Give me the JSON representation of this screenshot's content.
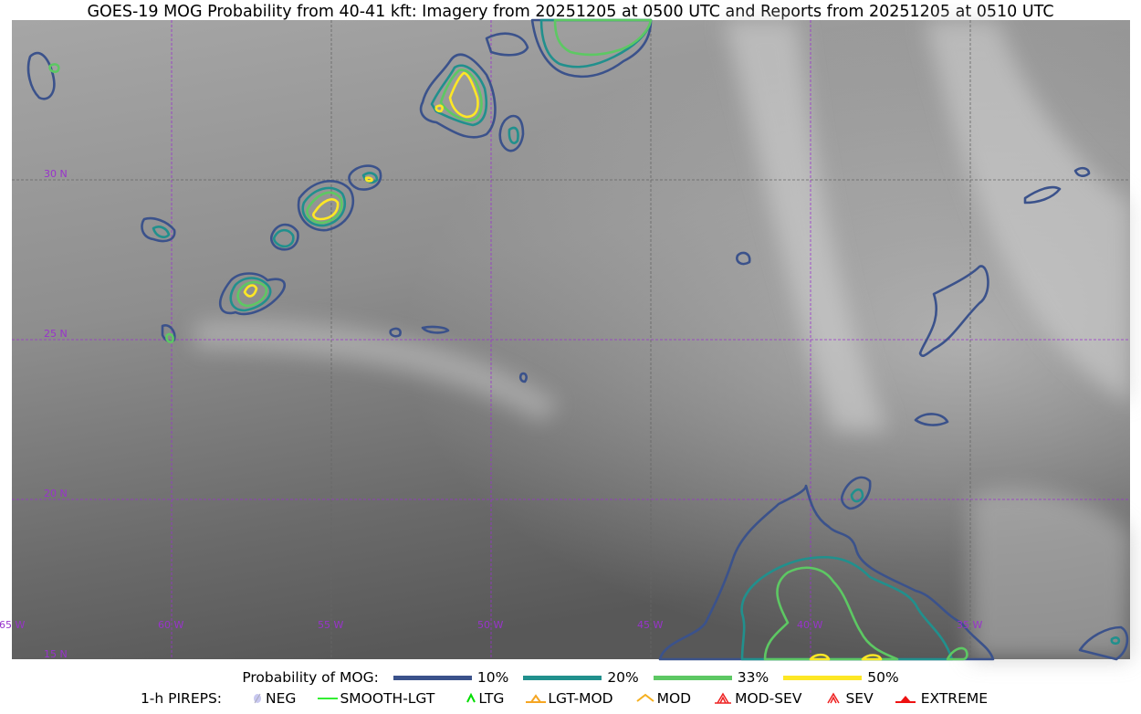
{
  "title": "GOES-19 MOG Probability from 40-41 kft: Imagery from 20251205 at 0500 UTC and Reports from 20251205 at 0510 UTC",
  "chart_data": {
    "type": "contour",
    "background": "satellite water vapor imagery (grayscale)",
    "x_ticks": [
      "65 W",
      "60 W",
      "55 W",
      "50 W",
      "45 W",
      "40 W",
      "35 W"
    ],
    "y_ticks": [
      "30 N",
      "25 N",
      "20 N",
      "15 N"
    ],
    "xlim": [
      "65.4 W",
      "30.4 W"
    ],
    "ylim": [
      "15 N",
      "35 N"
    ],
    "grid": true,
    "grid_color": "#9933cc",
    "contour_levels": [
      {
        "label": "10%",
        "color": "#3b528b"
      },
      {
        "label": "20%",
        "color": "#21908d"
      },
      {
        "label": "33%",
        "color": "#5dc863"
      },
      {
        "label": "50%",
        "color": "#fde725"
      }
    ]
  },
  "legend": {
    "mog_title": "Probability of MOG:",
    "levels": [
      "10%",
      "20%",
      "33%",
      "50%"
    ],
    "pireps_title": "1-h PIREPS:",
    "pireps": [
      {
        "label": "NEG",
        "color": "#c8c8f0",
        "icon": "neg-icon"
      },
      {
        "label": "SMOOTH-LGT",
        "color": "#33ee33",
        "icon": "line-icon"
      },
      {
        "label": "LTG",
        "color": "#00dd00",
        "icon": "caret-icon"
      },
      {
        "label": "LGT-MOD",
        "color": "#f5a623",
        "icon": "caret-bar-icon"
      },
      {
        "label": "MOD",
        "color": "#f5b020",
        "icon": "caret-icon"
      },
      {
        "label": "MOD-SEV",
        "color": "#ee2222",
        "icon": "double-caret-bar-icon"
      },
      {
        "label": "SEV",
        "color": "#ee2222",
        "icon": "double-caret-icon"
      },
      {
        "label": "EXTREME",
        "color": "#ee1111",
        "icon": "filled-triangle-icon"
      }
    ]
  }
}
